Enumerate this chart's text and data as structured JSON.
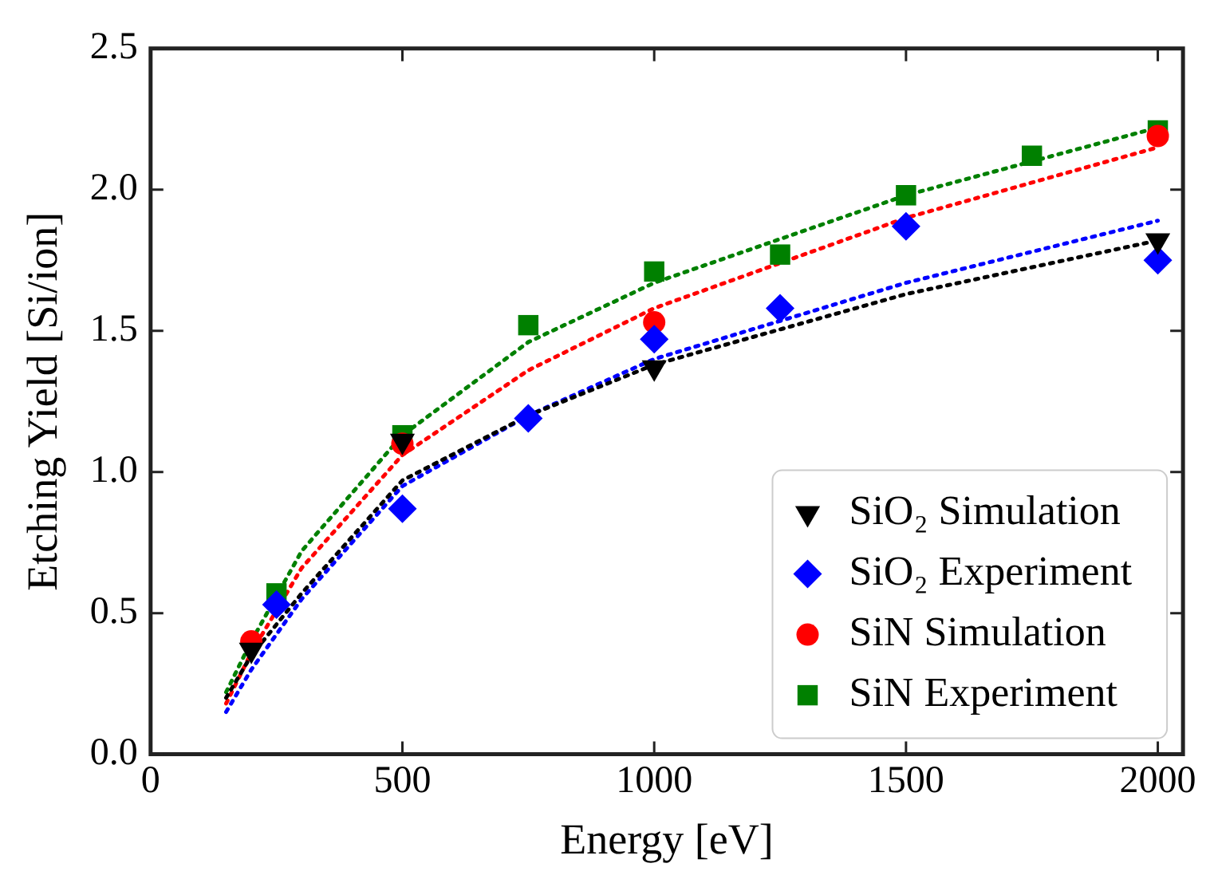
{
  "chart_data": {
    "type": "scatter",
    "xlabel": "Energy [eV]",
    "ylabel": "Etching Yield [Si/ion]",
    "xlim": [
      0,
      2050
    ],
    "xticks": [
      0,
      500,
      1000,
      1500,
      2000
    ],
    "ylim": [
      0,
      2.5
    ],
    "yticks": [
      {
        "value": 0,
        "label": "0.0"
      },
      {
        "value": 0.5,
        "label": "0.5"
      },
      {
        "value": 1,
        "label": "1.0"
      },
      {
        "value": 1.5,
        "label": "1.5"
      },
      {
        "value": 2,
        "label": "2.0"
      },
      {
        "value": 2.5,
        "label": "2.5"
      }
    ],
    "grid": false,
    "legend": "bottom right",
    "series": [
      {
        "type": "line",
        "color": "#000000",
        "line_style": "dotted",
        "marker": "none",
        "x": [
          150,
          200,
          300,
          500,
          750,
          1000,
          1500,
          2000
        ],
        "values": [
          0.2,
          0.35,
          0.57,
          0.97,
          1.2,
          1.38,
          1.63,
          1.82
        ]
      },
      {
        "type": "line",
        "color": "#0000ff",
        "line_style": "dotted",
        "marker": "none",
        "x": [
          150,
          200,
          300,
          500,
          750,
          1000,
          1500,
          2000
        ],
        "values": [
          0.15,
          0.3,
          0.55,
          0.95,
          1.2,
          1.4,
          1.67,
          1.89
        ]
      },
      {
        "type": "line",
        "color": "#ff0000",
        "line_style": "dotted",
        "marker": "none",
        "x": [
          150,
          200,
          300,
          500,
          750,
          1000,
          1500,
          2000
        ],
        "values": [
          0.18,
          0.36,
          0.66,
          1.06,
          1.36,
          1.58,
          1.9,
          2.15
        ]
      },
      {
        "type": "line",
        "color": "#008000",
        "line_style": "dotted",
        "marker": "none",
        "x": [
          150,
          200,
          300,
          500,
          750,
          1000,
          1500,
          2000
        ],
        "values": [
          0.22,
          0.4,
          0.72,
          1.13,
          1.46,
          1.67,
          1.98,
          2.22
        ]
      },
      {
        "name": "SiO₂ Simulation",
        "color": "#000000",
        "marker": "triangle_down",
        "x": [
          200,
          500,
          1000,
          2000
        ],
        "values": [
          0.37,
          1.11,
          1.37,
          1.82
        ]
      },
      {
        "name": "SiO₂ Experiment",
        "color": "#0000ff",
        "marker": "diamond",
        "x": [
          250,
          500,
          750,
          1000,
          1250,
          1500,
          2000
        ],
        "values": [
          0.53,
          0.87,
          1.19,
          1.47,
          1.58,
          1.87,
          1.75
        ]
      },
      {
        "name": "SiN Simulation",
        "color": "#ff0000",
        "marker": "circle",
        "x": [
          200,
          500,
          1000,
          2000
        ],
        "values": [
          0.4,
          1.1,
          1.53,
          2.19
        ]
      },
      {
        "name": "SiN Experiment",
        "color": "#008000",
        "marker": "square",
        "x": [
          250,
          500,
          750,
          1000,
          1250,
          1500,
          1750,
          2000
        ],
        "values": [
          0.57,
          1.13,
          1.52,
          1.71,
          1.77,
          1.98,
          2.12,
          2.21
        ]
      }
    ]
  }
}
